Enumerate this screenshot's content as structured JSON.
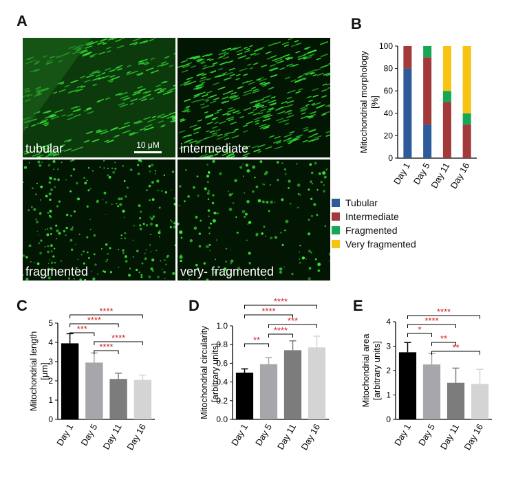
{
  "panels": {
    "A": "A",
    "B": "B",
    "C": "C",
    "D": "D",
    "E": "E"
  },
  "micrographs": [
    {
      "label": "tubular",
      "style": "tubular"
    },
    {
      "label": "intermediate",
      "style": "intermediate"
    },
    {
      "label": "fragmented",
      "style": "fragmented"
    },
    {
      "label": "very- fragmented",
      "style": "very"
    }
  ],
  "scale_bar": "10 μM",
  "chart_data": [
    {
      "type": "bar",
      "stacked": true,
      "ylabel": "Mitochondrial  morphology\n[%]",
      "ylim": [
        0,
        100
      ],
      "yticks": [
        0,
        20,
        40,
        60,
        80,
        100
      ],
      "categories": [
        "Day 1",
        "Day 5",
        "Day 11",
        "Day 16"
      ],
      "series": [
        {
          "name": "Tubular",
          "color": "#2e5b9a",
          "values": [
            80,
            30,
            0,
            0
          ]
        },
        {
          "name": "Intermediate",
          "color": "#a33a3a",
          "values": [
            20,
            60,
            50,
            30
          ]
        },
        {
          "name": "Fragmented",
          "color": "#16a753",
          "values": [
            0,
            10,
            10,
            10
          ]
        },
        {
          "name": "Very fragmented",
          "color": "#f8c313",
          "values": [
            0,
            0,
            40,
            60
          ]
        }
      ],
      "legend_position": "below"
    },
    {
      "type": "bar",
      "ylabel": "Mitochondrial length\n[μm]",
      "ylim": [
        0,
        5
      ],
      "yticks": [
        0,
        1,
        2,
        3,
        4,
        5
      ],
      "categories": [
        "Day 1",
        "Day 5",
        "Day 11",
        "Day 16"
      ],
      "values": [
        3.95,
        2.95,
        2.1,
        2.05
      ],
      "errors": [
        0.5,
        0.5,
        0.3,
        0.25
      ],
      "colors": [
        "#000000",
        "#a6a6ab",
        "#7c7c7c",
        "#d4d4d4"
      ],
      "significance": [
        {
          "from": 0,
          "to": 3,
          "label": "****"
        },
        {
          "from": 0,
          "to": 2,
          "label": "****"
        },
        {
          "from": 0,
          "to": 1,
          "label": "***"
        },
        {
          "from": 1,
          "to": 3,
          "label": "****"
        },
        {
          "from": 1,
          "to": 2,
          "label": "****"
        }
      ]
    },
    {
      "type": "bar",
      "ylabel": "Mitochondrial circularity\n[arbitrary units]",
      "ylim": [
        0,
        1.0
      ],
      "yticks": [
        0.0,
        0.2,
        0.4,
        0.6,
        0.8,
        1.0
      ],
      "categories": [
        "Day 1",
        "Day 5",
        "Day 11",
        "Day 16"
      ],
      "values": [
        0.5,
        0.59,
        0.74,
        0.77
      ],
      "errors": [
        0.04,
        0.07,
        0.1,
        0.12
      ],
      "colors": [
        "#000000",
        "#a6a6ab",
        "#7c7c7c",
        "#d4d4d4"
      ],
      "significance": [
        {
          "from": 0,
          "to": 3,
          "label": "****"
        },
        {
          "from": 0,
          "to": 2,
          "label": "****"
        },
        {
          "from": 1,
          "to": 3,
          "label": "***"
        },
        {
          "from": 1,
          "to": 2,
          "label": "****"
        },
        {
          "from": 0,
          "to": 1,
          "label": "**"
        }
      ]
    },
    {
      "type": "bar",
      "ylabel": "Mitochondrial area\n[arbitrary units]",
      "ylim": [
        0,
        4
      ],
      "yticks": [
        0,
        1,
        2,
        3,
        4
      ],
      "categories": [
        "Day 1",
        "Day 5",
        "Day 11",
        "Day 16"
      ],
      "values": [
        2.75,
        2.25,
        1.5,
        1.45
      ],
      "errors": [
        0.4,
        0.45,
        0.6,
        0.6
      ],
      "colors": [
        "#000000",
        "#a6a6ab",
        "#7c7c7c",
        "#d4d4d4"
      ],
      "significance": [
        {
          "from": 0,
          "to": 3,
          "label": "****"
        },
        {
          "from": 0,
          "to": 2,
          "label": "****"
        },
        {
          "from": 0,
          "to": 1,
          "label": "*"
        },
        {
          "from": 1,
          "to": 2,
          "label": "**"
        },
        {
          "from": 1,
          "to": 3,
          "label": "**"
        }
      ]
    }
  ]
}
